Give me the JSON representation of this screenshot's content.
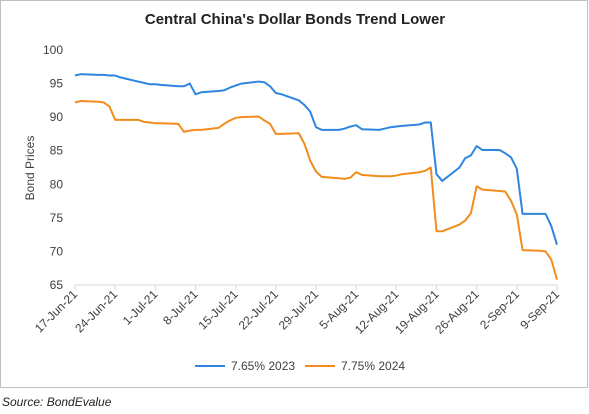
{
  "chart_data": {
    "type": "line",
    "title": "Central China's Dollar Bonds Trend Lower",
    "y_label": "Bond Prices",
    "source": "Source: BondEvalue",
    "x": [
      "17-Jun-21",
      "18-Jun-21",
      "21-Jun-21",
      "22-Jun-21",
      "23-Jun-21",
      "24-Jun-21",
      "25-Jun-21",
      "28-Jun-21",
      "29-Jun-21",
      "30-Jun-21",
      "1-Jul-21",
      "2-Jul-21",
      "5-Jul-21",
      "6-Jul-21",
      "7-Jul-21",
      "8-Jul-21",
      "9-Jul-21",
      "12-Jul-21",
      "13-Jul-21",
      "14-Jul-21",
      "15-Jul-21",
      "16-Jul-21",
      "19-Jul-21",
      "20-Jul-21",
      "21-Jul-21",
      "22-Jul-21",
      "23-Jul-21",
      "26-Jul-21",
      "27-Jul-21",
      "28-Jul-21",
      "29-Jul-21",
      "30-Jul-21",
      "2-Aug-21",
      "3-Aug-21",
      "4-Aug-21",
      "5-Aug-21",
      "6-Aug-21",
      "9-Aug-21",
      "10-Aug-21",
      "11-Aug-21",
      "12-Aug-21",
      "13-Aug-21",
      "16-Aug-21",
      "17-Aug-21",
      "18-Aug-21",
      "19-Aug-21",
      "20-Aug-21",
      "23-Aug-21",
      "24-Aug-21",
      "25-Aug-21",
      "26-Aug-21",
      "27-Aug-21",
      "30-Aug-21",
      "31-Aug-21",
      "1-Sep-21",
      "2-Sep-21",
      "3-Sep-21",
      "6-Sep-21",
      "7-Sep-21",
      "8-Sep-21",
      "9-Sep-21"
    ],
    "series": [
      {
        "name": "7.65% 2023",
        "color": "#2e86de",
        "values": [
          96.2,
          96.4,
          96.3,
          96.3,
          96.2,
          96.2,
          95.9,
          95.3,
          95.1,
          94.9,
          94.9,
          94.8,
          94.6,
          94.6,
          95.0,
          93.4,
          93.7,
          93.9,
          94.0,
          94.4,
          94.7,
          95.0,
          95.3,
          95.2,
          94.6,
          93.6,
          93.4,
          92.5,
          91.8,
          90.8,
          88.5,
          88.1,
          88.1,
          88.3,
          88.6,
          88.8,
          88.2,
          88.1,
          88.3,
          88.5,
          88.6,
          88.7,
          88.9,
          89.2,
          89.2,
          81.5,
          80.5,
          82.5,
          83.9,
          84.3,
          85.7,
          85.1,
          85.1,
          84.6,
          84.0,
          82.3,
          75.6,
          75.6,
          75.6,
          73.8,
          71.0
        ]
      },
      {
        "name": "7.75% 2024",
        "color": "#f28c1c",
        "values": [
          92.2,
          92.4,
          92.3,
          92.2,
          91.6,
          89.6,
          89.6,
          89.6,
          89.3,
          89.2,
          89.1,
          89.1,
          89.0,
          87.8,
          88.0,
          88.1,
          88.1,
          88.4,
          89.0,
          89.5,
          89.9,
          90.0,
          90.1,
          89.5,
          89.0,
          87.5,
          87.5,
          87.6,
          86.0,
          83.5,
          81.9,
          81.1,
          80.9,
          80.8,
          81.0,
          81.8,
          81.4,
          81.2,
          81.2,
          81.2,
          81.3,
          81.5,
          81.8,
          82.0,
          82.5,
          73.0,
          73.0,
          74.0,
          74.6,
          75.7,
          79.7,
          79.2,
          79.0,
          78.9,
          77.5,
          75.5,
          70.2,
          70.1,
          70.0,
          68.8,
          65.8
        ]
      }
    ],
    "xlim": [
      "17-Jun-21",
      "9-Sep-21"
    ],
    "xticks": [
      "17-Jun-21",
      "24-Jun-21",
      "1-Jul-21",
      "8-Jul-21",
      "15-Jul-21",
      "22-Jul-21",
      "29-Jul-21",
      "5-Aug-21",
      "12-Aug-21",
      "19-Aug-21",
      "26-Aug-21",
      "2-Sep-21",
      "9-Sep-21"
    ],
    "ylim": [
      65,
      100
    ],
    "yticks": [
      65,
      70,
      75,
      80,
      85,
      90,
      95,
      100
    ],
    "grid": false,
    "legend": "bottom"
  }
}
